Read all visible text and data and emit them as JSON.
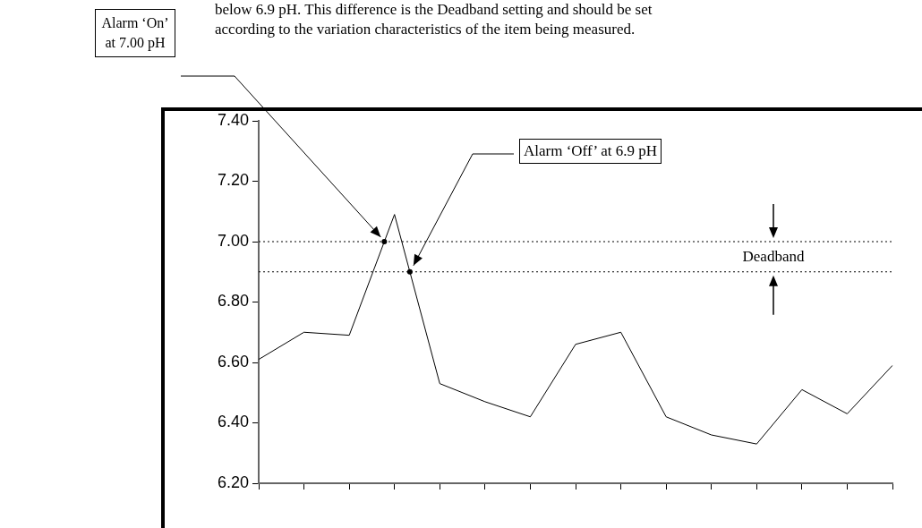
{
  "chart_data": {
    "type": "line",
    "categories": [
      null,
      null,
      null,
      null,
      null,
      null,
      null,
      null,
      null,
      null,
      null,
      null,
      null,
      null,
      null
    ],
    "series": [
      {
        "color": "#000000",
        "values": [
          6.61,
          6.7,
          6.69,
          7.09,
          6.53,
          6.47,
          6.42,
          6.66,
          6.7,
          6.42,
          6.36,
          6.33,
          6.51,
          6.43,
          6.59
        ]
      }
    ],
    "ylim": [
      6.2,
      7.4
    ],
    "yticks": [
      {
        "value": 6.2,
        "label": "6.20"
      },
      {
        "value": 6.4,
        "label": "6.40"
      },
      {
        "value": 6.6,
        "label": "6.60"
      },
      {
        "value": 6.8,
        "label": "6.80"
      },
      {
        "value": 7.0,
        "label": "7.00"
      },
      {
        "value": 7.2,
        "label": "7.20"
      },
      {
        "value": 7.4,
        "label": "7.40"
      }
    ],
    "tick_labels": "y",
    "grid": false,
    "legend": false,
    "marker": "none",
    "line_style": "solid",
    "ref_lines": [
      {
        "axis": "y",
        "value": 7.0,
        "line_style": "dotted",
        "color": "#000000"
      },
      {
        "axis": "y",
        "value": 6.9,
        "line_style": "dotted",
        "color": "#000000"
      }
    ],
    "annotations": [
      "below 6.9 pH. This difference is the Deadband setting and should be set",
      "according to the variation characteristics of the item being measured.",
      "Alarm ‘On’ at 7.00 pH",
      "Alarm ‘Off’ at 6.9 pH",
      "Deadband"
    ]
  }
}
